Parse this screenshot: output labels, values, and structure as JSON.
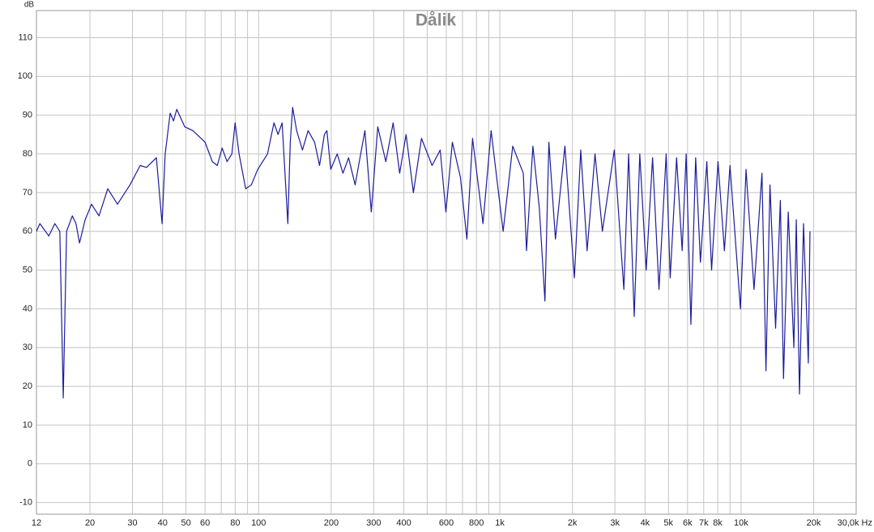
{
  "chart_data": {
    "type": "line",
    "title": "Dålik",
    "y_label": "dB",
    "color": "#1c1c9c",
    "x_log": true,
    "grid": true,
    "xlim": [
      12,
      30000
    ],
    "ylim": [
      -13,
      117
    ],
    "yticks": [
      -10,
      0,
      10,
      20,
      30,
      40,
      50,
      60,
      70,
      80,
      90,
      100,
      110
    ],
    "xticks": [
      12,
      20,
      30,
      40,
      50,
      60,
      80,
      100,
      200,
      300,
      400,
      600,
      800,
      {
        "value": 1000,
        "label": "1k"
      },
      {
        "value": 2000,
        "label": "2k"
      },
      {
        "value": 3000,
        "label": "3k"
      },
      {
        "value": 4000,
        "label": "4k"
      },
      {
        "value": 5000,
        "label": "5k"
      },
      {
        "value": 6000,
        "label": "6k"
      },
      {
        "value": 7000,
        "label": "7k"
      },
      {
        "value": 8000,
        "label": "8k"
      },
      {
        "value": 10000,
        "label": "10k"
      },
      {
        "value": 20000,
        "label": "20k"
      },
      {
        "value": 30000,
        "label": "30,0k Hz"
      }
    ],
    "x_minor_ticks": [
      70,
      90,
      500,
      700,
      900,
      9000
    ],
    "x": [
      12,
      12.4,
      13.5,
      14.3,
      15.0,
      15.5,
      16.0,
      16.9,
      17.5,
      18.1,
      19.1,
      20.3,
      21.8,
      23.7,
      26.0,
      29.3,
      32.3,
      34.3,
      37.7,
      39.8,
      41.0,
      43.0,
      44.4,
      45.8,
      49.4,
      53.4,
      60.0,
      64.3,
      67.4,
      70.6,
      74.0,
      77.5,
      79.9,
      83.0,
      88.4,
      93.3,
      99.2,
      108.9,
      115.8,
      120.4,
      125.2,
      132.2,
      135.3,
      138.4,
      143.8,
      152,
      160.4,
      170.7,
      178.9,
      187.4,
      191.9,
      199.1,
      211.8,
      223.7,
      236.1,
      251.3,
      275.8,
      293.2,
      311.8,
      336.8,
      361.2,
      384.4,
      408.6,
      438.2,
      473.4,
      523.7,
      565.9,
      597.6,
      635.6,
      686.3,
      730.1,
      770.8,
      851.6,
      920.1,
      1032,
      1131,
      1251,
      1290,
      1371,
      1458,
      1538,
      1597,
      1700,
      1861,
      2037,
      2165,
      2300,
      2481,
      2661,
      2982,
      3266,
      3419,
      3606,
      3803,
      4043,
      4297,
      4568,
      4892,
      5084,
      5404,
      5699,
      5921,
      6195,
      6483,
      6784,
      7212,
      7547,
      8023,
      8530,
      8995,
      9938,
      10486,
      11314,
      12207,
      12682,
      13176,
      13902,
      14548,
      14992,
      15688,
      16551,
      16936,
      17463,
      18151,
      19000,
      19300
    ],
    "values": [
      60,
      62,
      58.8,
      62,
      60,
      17,
      60,
      64,
      62,
      57,
      63,
      67,
      64,
      71,
      67,
      72,
      77,
      76.5,
      79,
      62,
      80,
      90.5,
      88.5,
      91.5,
      87,
      86,
      83,
      78,
      77,
      81.5,
      78,
      80,
      88,
      80,
      71,
      72,
      76,
      80,
      88,
      85,
      88,
      62,
      83,
      92,
      86,
      81,
      86,
      83,
      77,
      85,
      86,
      76,
      80,
      75,
      79,
      72,
      86,
      65,
      87,
      78,
      88,
      75,
      85,
      70,
      84,
      77,
      81,
      65,
      83,
      74,
      58,
      84,
      62,
      86,
      60,
      82,
      75,
      55,
      82,
      66,
      42,
      83,
      58,
      82,
      48,
      81,
      55,
      80,
      60,
      81,
      45,
      80,
      38,
      80,
      50,
      79,
      45,
      80,
      48,
      79,
      55,
      80,
      36,
      79,
      52,
      78,
      50,
      78,
      55,
      77,
      40,
      76,
      45,
      75,
      24,
      72,
      35,
      68,
      22,
      65,
      30,
      63,
      18,
      62,
      26,
      60
    ]
  }
}
